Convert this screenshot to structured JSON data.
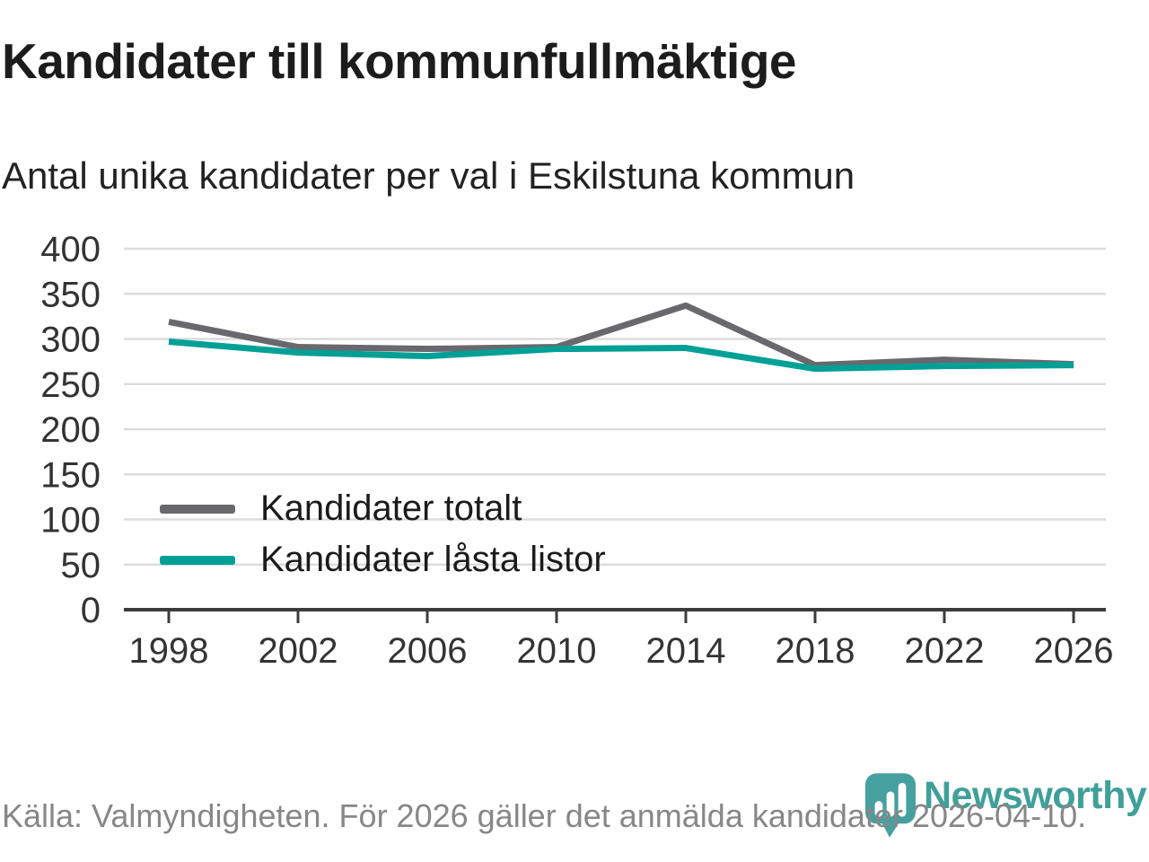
{
  "header": {
    "title": "Kandidater till kommunfullmäktige",
    "subtitle": "Antal unika kandidater per val i Eskilstuna kommun"
  },
  "chart_data": {
    "type": "line",
    "title": "Kandidater till kommunfullmäktige",
    "subtitle": "Antal unika kandidater per val i Eskilstuna kommun",
    "categories": [
      "1998",
      "2002",
      "2006",
      "2010",
      "2014",
      "2018",
      "2022",
      "2026"
    ],
    "series": [
      {
        "name": "Kandidater totalt",
        "color": "#69686d",
        "values": [
          319,
          291,
          289,
          291,
          337,
          271,
          277,
          272
        ]
      },
      {
        "name": "Kandidater låsta listor",
        "color": "#00a096",
        "values": [
          297,
          285,
          281,
          289,
          290,
          267,
          270,
          271
        ]
      }
    ],
    "xlabel": "",
    "ylabel": "",
    "ylim": [
      0,
      400
    ],
    "ytick_step": 50,
    "yticks": [
      0,
      50,
      100,
      150,
      200,
      250,
      300,
      350,
      400
    ],
    "grid": "horizontal",
    "legend_position": "inside-bottom-left"
  },
  "footer": {
    "source": "Källa: Valmyndigheten. För 2026 gäller det anmälda kandidater 2026-04-10.",
    "brand": "Newsworthy",
    "brand_color": "#3fa09a",
    "logo_icon": "bar-chart-map-pin"
  },
  "colors": {
    "grid": "#dcdcdc",
    "axis": "#3c3c3c",
    "tick_label": "#333333",
    "title_text": "#1c1c1c",
    "footer_text": "#878787"
  }
}
